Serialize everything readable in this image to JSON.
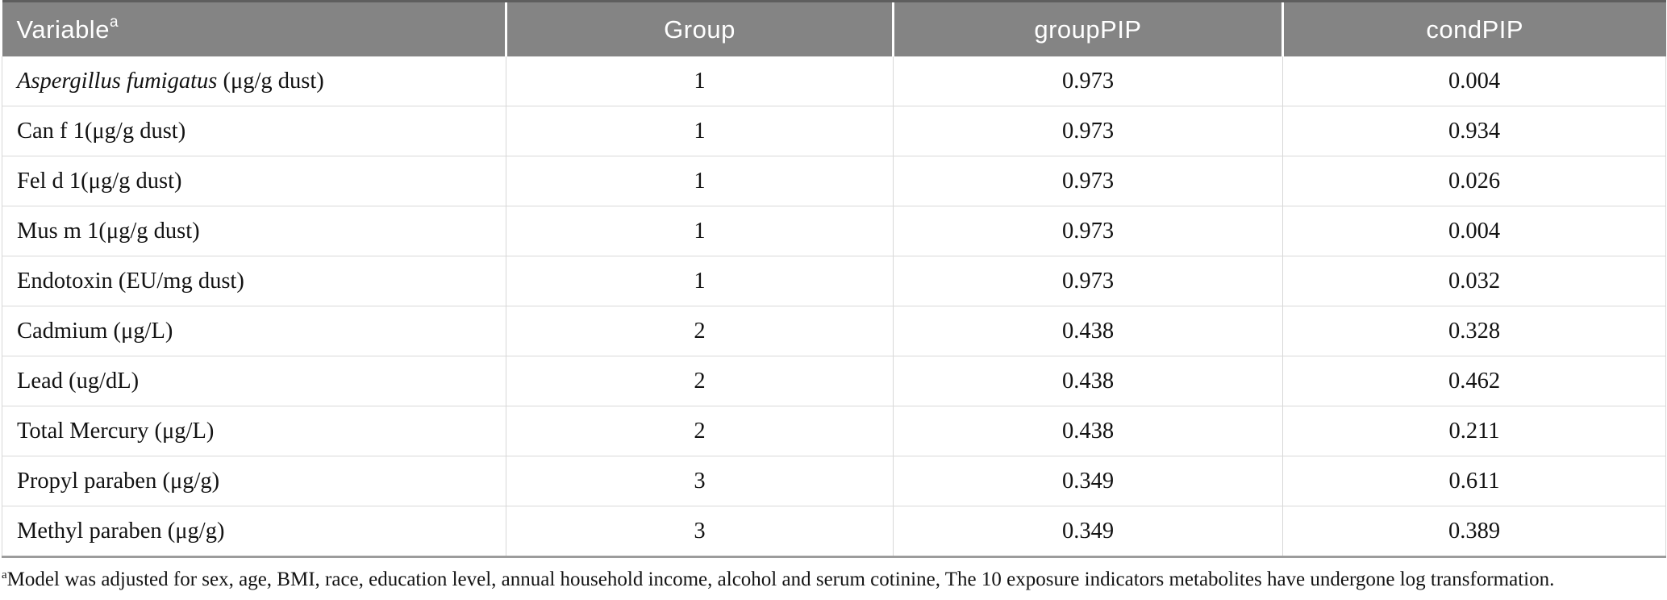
{
  "table": {
    "columns": [
      {
        "key": "variable",
        "label": "Variable",
        "sup": "a"
      },
      {
        "key": "group",
        "label": "Group",
        "sup": ""
      },
      {
        "key": "groupPIP",
        "label": "groupPIP",
        "sup": ""
      },
      {
        "key": "condPIP",
        "label": "condPIP",
        "sup": ""
      }
    ],
    "rows": [
      {
        "variable_italic": "Aspergillus fumigatus",
        "variable": " (μg/g dust)",
        "group": "1",
        "groupPIP": "0.973",
        "condPIP": "0.004"
      },
      {
        "variable_italic": "",
        "variable": "Can f 1(μg/g dust)",
        "group": "1",
        "groupPIP": "0.973",
        "condPIP": "0.934"
      },
      {
        "variable_italic": "",
        "variable": "Fel d 1(μg/g dust)",
        "group": "1",
        "groupPIP": "0.973",
        "condPIP": "0.026"
      },
      {
        "variable_italic": "",
        "variable": "Mus m 1(μg/g dust)",
        "group": "1",
        "groupPIP": "0.973",
        "condPIP": "0.004"
      },
      {
        "variable_italic": "",
        "variable": "Endotoxin (EU/mg dust)",
        "group": "1",
        "groupPIP": "0.973",
        "condPIP": "0.032"
      },
      {
        "variable_italic": "",
        "variable": "Cadmium (μg/L)",
        "group": "2",
        "groupPIP": "0.438",
        "condPIP": "0.328"
      },
      {
        "variable_italic": "",
        "variable": "Lead (ug/dL)",
        "group": "2",
        "groupPIP": "0.438",
        "condPIP": "0.462"
      },
      {
        "variable_italic": "",
        "variable": "Total Mercury (μg/L)",
        "group": "2",
        "groupPIP": "0.438",
        "condPIP": "0.211"
      },
      {
        "variable_italic": "",
        "variable": "Propyl paraben (μg/g)",
        "group": "3",
        "groupPIP": "0.349",
        "condPIP": "0.611"
      },
      {
        "variable_italic": "",
        "variable": "Methyl paraben (μg/g)",
        "group": "3",
        "groupPIP": "0.349",
        "condPIP": "0.389"
      }
    ]
  },
  "footnote": {
    "sup": "a",
    "text": "Model was adjusted for sex, age, BMI, race, education level, annual household income, alcohol and serum cotinine, The 10 exposure indicators metabolites have undergone log transformation."
  },
  "colors": {
    "header_bg": "#848484",
    "header_text": "#ffffff",
    "row_border": "#d8d8d8",
    "bottom_rule": "#9c9c9c",
    "top_rule": "#5e5e5e"
  }
}
